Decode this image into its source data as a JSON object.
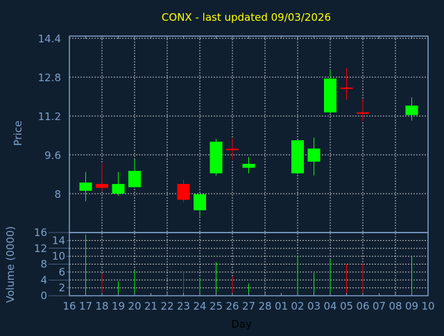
{
  "chart_data": {
    "type": "candlestick",
    "title": "CONX - last updated 09/03/2026",
    "xlabel": "Day",
    "ylabel": "Price",
    "volume_ylabel": "Volume (0000)",
    "x_ticks": [
      "16",
      "17",
      "18",
      "19",
      "20",
      "21",
      "22",
      "23",
      "24",
      "25",
      "26",
      "27",
      "28",
      "01",
      "02",
      "03",
      "04",
      "05",
      "06",
      "07",
      "08",
      "09",
      "10"
    ],
    "price_ticks": [
      "8",
      "9.6",
      "11.2",
      "12.8",
      "14.4"
    ],
    "volume_ticks": [
      "0",
      "2",
      "4",
      "6",
      "8",
      "10",
      "12",
      "14",
      "16"
    ],
    "ylim": [
      6.4,
      14.49
    ],
    "volume_ylim": [
      0,
      16
    ],
    "grid": true,
    "colors": {
      "background": "#0f1f30",
      "axis": "#7f9fc8",
      "grid": "#c8c8c8",
      "up": "#00ff00",
      "down": "#ff0000",
      "title": "#ffff00",
      "xlabel": "#000000"
    },
    "candles": [
      {
        "day": "17",
        "open": 8.12,
        "high": 8.89,
        "low": 7.69,
        "close": 8.46,
        "volume": 15.5
      },
      {
        "day": "18",
        "open": 8.4,
        "high": 9.26,
        "low": 8.11,
        "close": 8.24,
        "volume": 5.7
      },
      {
        "day": "19",
        "open": 8.0,
        "high": 8.89,
        "low": 7.92,
        "close": 8.4,
        "volume": 3.6
      },
      {
        "day": "20",
        "open": 8.27,
        "high": 9.4,
        "low": 8.27,
        "close": 8.94,
        "volume": 6.3
      },
      {
        "day": "23",
        "open": 8.4,
        "high": 8.57,
        "low": 7.64,
        "close": 7.75,
        "volume": 6.0
      },
      {
        "day": "24",
        "open": 7.32,
        "high": 7.98,
        "low": 7.07,
        "close": 7.98,
        "volume": 4.6
      },
      {
        "day": "25",
        "open": 8.84,
        "high": 10.26,
        "low": 8.75,
        "close": 10.14,
        "volume": 8.5
      },
      {
        "day": "26",
        "open": 9.85,
        "high": 10.28,
        "low": 9.4,
        "close": 9.83,
        "volume": 4.9
      },
      {
        "day": "27",
        "open": 9.07,
        "high": 9.51,
        "low": 8.84,
        "close": 9.23,
        "volume": 3.1
      },
      {
        "day": "02",
        "open": 8.84,
        "high": 10.2,
        "low": 8.8,
        "close": 10.2,
        "volume": 10.1
      },
      {
        "day": "03",
        "open": 9.32,
        "high": 10.31,
        "low": 8.75,
        "close": 9.86,
        "volume": 5.8
      },
      {
        "day": "04",
        "open": 11.35,
        "high": 13.09,
        "low": 11.3,
        "close": 12.74,
        "volume": 9.3
      },
      {
        "day": "05",
        "open": 12.37,
        "high": 13.17,
        "low": 11.87,
        "close": 12.35,
        "volume": 8.0
      },
      {
        "day": "06",
        "open": 11.35,
        "high": 11.91,
        "low": 11.0,
        "close": 11.32,
        "volume": 8.1
      },
      {
        "day": "09",
        "open": 11.24,
        "high": 11.97,
        "low": 11.01,
        "close": 11.63,
        "volume": 10.0
      }
    ]
  }
}
